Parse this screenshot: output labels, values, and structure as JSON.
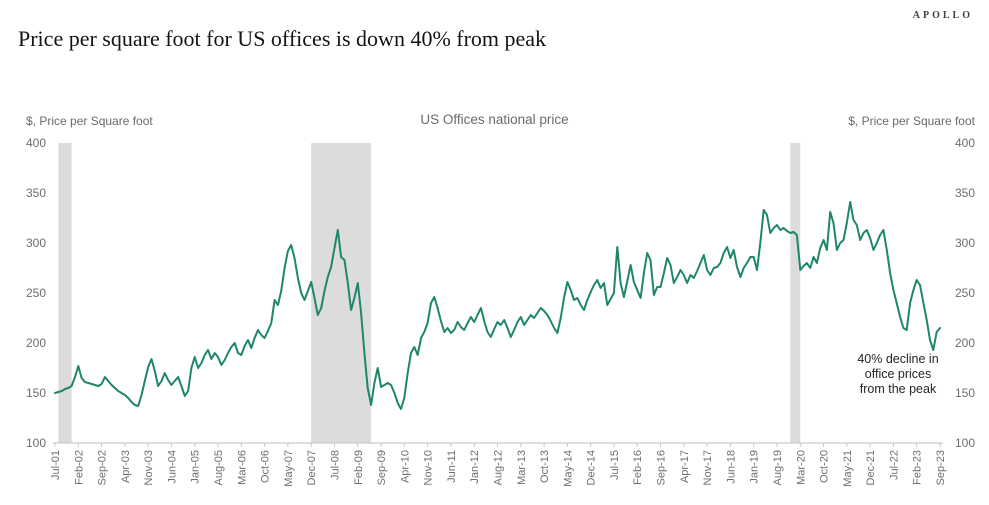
{
  "logo": "APOLLO",
  "title": "Price per square foot for US offices is down 40% from peak",
  "colors": {
    "line": "#1d866b",
    "recession_band": "#dcdcdc",
    "axis_line": "#c9c9c9",
    "tick_text": "#6e6e6e",
    "title_text": "#141414",
    "annotation_text": "#262626"
  },
  "chart_data": {
    "type": "line",
    "title": "US Offices national price",
    "left_axis_label": "$, Price per Square foot",
    "right_axis_label": "$, Price per Square foot",
    "ylim": [
      100,
      400
    ],
    "y_ticks": [
      100,
      150,
      200,
      250,
      300,
      350,
      400
    ],
    "grid": false,
    "legend_position": "none",
    "x_frequency": "monthly",
    "x_start": "Jul-01",
    "x_end": "Sep-23",
    "x_tick_interval_months": 7,
    "x_tick_labels": [
      "Jul-01",
      "Feb-02",
      "Sep-02",
      "Apr-03",
      "Nov-03",
      "Jun-04",
      "Jan-05",
      "Aug-05",
      "Mar-06",
      "Oct-06",
      "May-07",
      "Dec-07",
      "Jul-08",
      "Feb-09",
      "Sep-09",
      "Apr-10",
      "Nov-10",
      "Jun-11",
      "Jan-12",
      "Aug-12",
      "Mar-13",
      "Oct-13",
      "May-14",
      "Dec-14",
      "Jul-15",
      "Feb-16",
      "Sep-16",
      "Apr-17",
      "Nov-17",
      "Jun-18",
      "Jan-19",
      "Aug-19",
      "Mar-20",
      "Oct-20",
      "May-21",
      "Dec-21",
      "Jul-22",
      "Feb-23",
      "Sep-23"
    ],
    "recession_bands_month_indices": [
      [
        1,
        5
      ],
      [
        77,
        95
      ],
      [
        221,
        224
      ]
    ],
    "series": [
      {
        "name": "US Offices national price",
        "color": "#1d866b",
        "values": [
          150,
          151,
          152,
          154,
          155,
          157,
          166,
          177,
          165,
          161,
          160,
          159,
          158,
          157,
          159,
          166,
          162,
          158,
          155,
          152,
          150,
          148,
          145,
          141,
          138,
          137,
          148,
          162,
          176,
          184,
          172,
          157,
          162,
          170,
          163,
          158,
          162,
          166,
          157,
          147,
          152,
          175,
          186,
          175,
          180,
          188,
          193,
          184,
          190,
          186,
          178,
          183,
          190,
          196,
          200,
          190,
          188,
          197,
          203,
          195,
          205,
          213,
          208,
          205,
          212,
          220,
          243,
          238,
          252,
          275,
          292,
          298,
          285,
          265,
          250,
          243,
          252,
          261,
          245,
          228,
          235,
          252,
          266,
          276,
          295,
          313,
          286,
          283,
          260,
          233,
          245,
          260,
          230,
          190,
          155,
          138,
          160,
          175,
          156,
          158,
          160,
          158,
          150,
          140,
          134,
          145,
          170,
          190,
          196,
          188,
          205,
          211,
          220,
          240,
          246,
          235,
          222,
          211,
          215,
          210,
          213,
          221,
          216,
          213,
          220,
          226,
          221,
          228,
          235,
          222,
          211,
          206,
          214,
          221,
          218,
          223,
          215,
          206,
          213,
          221,
          226,
          218,
          223,
          228,
          225,
          230,
          235,
          232,
          228,
          222,
          215,
          210,
          225,
          245,
          261,
          253,
          243,
          245,
          238,
          233,
          243,
          251,
          258,
          263,
          255,
          260,
          238,
          244,
          250,
          296,
          260,
          246,
          262,
          278,
          261,
          253,
          245,
          270,
          290,
          283,
          248,
          256,
          256,
          270,
          285,
          278,
          260,
          266,
          273,
          268,
          260,
          268,
          265,
          272,
          280,
          288,
          273,
          268,
          275,
          276,
          280,
          290,
          296,
          285,
          293,
          276,
          266,
          275,
          280,
          286,
          286,
          273,
          300,
          333,
          328,
          310,
          315,
          318,
          313,
          315,
          312,
          310,
          311,
          308,
          273,
          277,
          280,
          275,
          286,
          280,
          295,
          303,
          293,
          331,
          320,
          293,
          300,
          303,
          320,
          341,
          323,
          318,
          303,
          310,
          313,
          305,
          293,
          300,
          308,
          313,
          293,
          270,
          253,
          240,
          226,
          215,
          213,
          240,
          253,
          263,
          258,
          240,
          223,
          203,
          193,
          211,
          215
        ]
      }
    ],
    "annotation": {
      "text": "40% decline in office prices from the peak",
      "lines": [
        "40% decline in",
        "office prices",
        "from the peak"
      ]
    }
  }
}
